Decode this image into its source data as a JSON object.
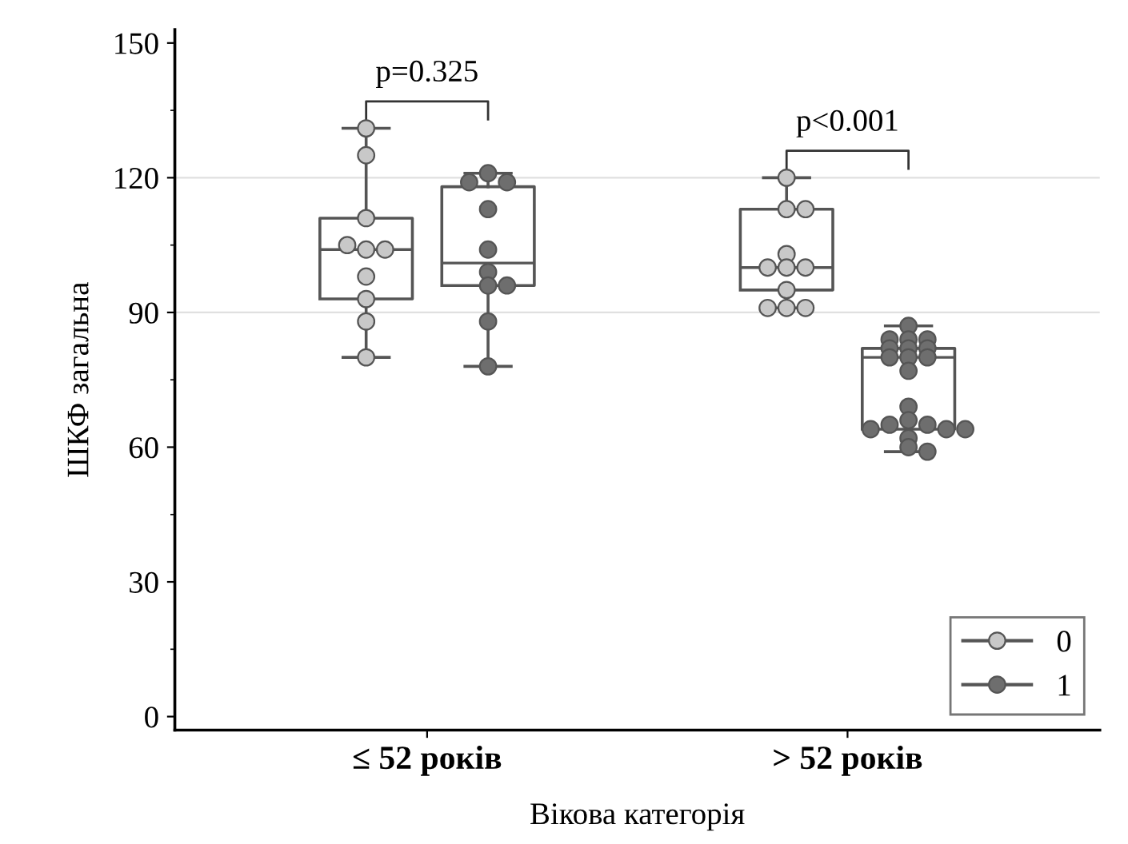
{
  "chart_data": {
    "type": "box",
    "xlabel": "Вікова категорія",
    "ylabel": "ШКФ загальна",
    "categories": [
      "≤ 52 років",
      "> 52 років"
    ],
    "ylim": [
      -3,
      153
    ],
    "yticks": [
      0,
      30,
      60,
      90,
      120,
      150
    ],
    "legend": "bottom right",
    "grid": false,
    "marker": "circle",
    "ref_lines": [
      {
        "axis": "y",
        "value": 90,
        "color": "#e0e0e0"
      },
      {
        "axis": "y",
        "value": 120,
        "color": "#e0e0e0"
      }
    ],
    "annotations": [
      "p=0.325",
      "p<0.001"
    ],
    "series": [
      {
        "color": "#555555",
        "boxes": [
          {
            "low": 80,
            "q1": 93,
            "median": 104,
            "q3": 111,
            "high": 131
          },
          {
            "low": 91,
            "q1": 95,
            "median": 100,
            "q3": 113,
            "high": 120
          }
        ]
      },
      {
        "color": "#555555",
        "boxes": [
          {
            "low": 78,
            "q1": 96,
            "median": 101,
            "q3": 118,
            "high": 121
          },
          {
            "low": 59,
            "q1": 64,
            "median": 80,
            "q3": 82,
            "high": 87
          }
        ]
      },
      {
        "type": "scatter",
        "name": "0",
        "color": "#c8c8c8",
        "x": [
          "≤ 52 років",
          "≤ 52 років",
          "≤ 52 років",
          "≤ 52 років",
          "≤ 52 років",
          "≤ 52 років",
          "≤ 52 років",
          "≤ 52 років",
          "≤ 52 років",
          "≤ 52 років",
          "> 52 років",
          "> 52 років",
          "> 52 років",
          "> 52 років",
          "> 52 років",
          "> 52 років",
          "> 52 років",
          "> 52 років",
          "> 52 років",
          "> 52 років",
          "> 52 років"
        ],
        "values": [
          131,
          125,
          111,
          104,
          104,
          105,
          98,
          93,
          88,
          80,
          120,
          113,
          113,
          103,
          100,
          100,
          100,
          95,
          91,
          91,
          91
        ]
      },
      {
        "type": "scatter",
        "name": "1",
        "color": "#6e6e6e",
        "x": [
          "≤ 52 років",
          "≤ 52 років",
          "≤ 52 років",
          "≤ 52 років",
          "≤ 52 років",
          "≤ 52 років",
          "≤ 52 років",
          "≤ 52 років",
          "≤ 52 років",
          "≤ 52 років",
          "> 52 років",
          "> 52 років",
          "> 52 років",
          "> 52 років",
          "> 52 років",
          "> 52 років",
          "> 52 років",
          "> 52 років",
          "> 52 років",
          "> 52 років",
          "> 52 років",
          "> 52 років",
          "> 52 років",
          "> 52 років",
          "> 52 років",
          "> 52 років",
          "> 52 років",
          "> 52 років",
          "> 52 років",
          "> 52 років",
          "> 52 років"
        ],
        "values": [
          121,
          119,
          119,
          113,
          104,
          99,
          96,
          96,
          88,
          78,
          87,
          84,
          84,
          84,
          82,
          82,
          82,
          80,
          80,
          80,
          77,
          69,
          66,
          65,
          65,
          64,
          64,
          64,
          62,
          60,
          59
        ]
      }
    ]
  }
}
